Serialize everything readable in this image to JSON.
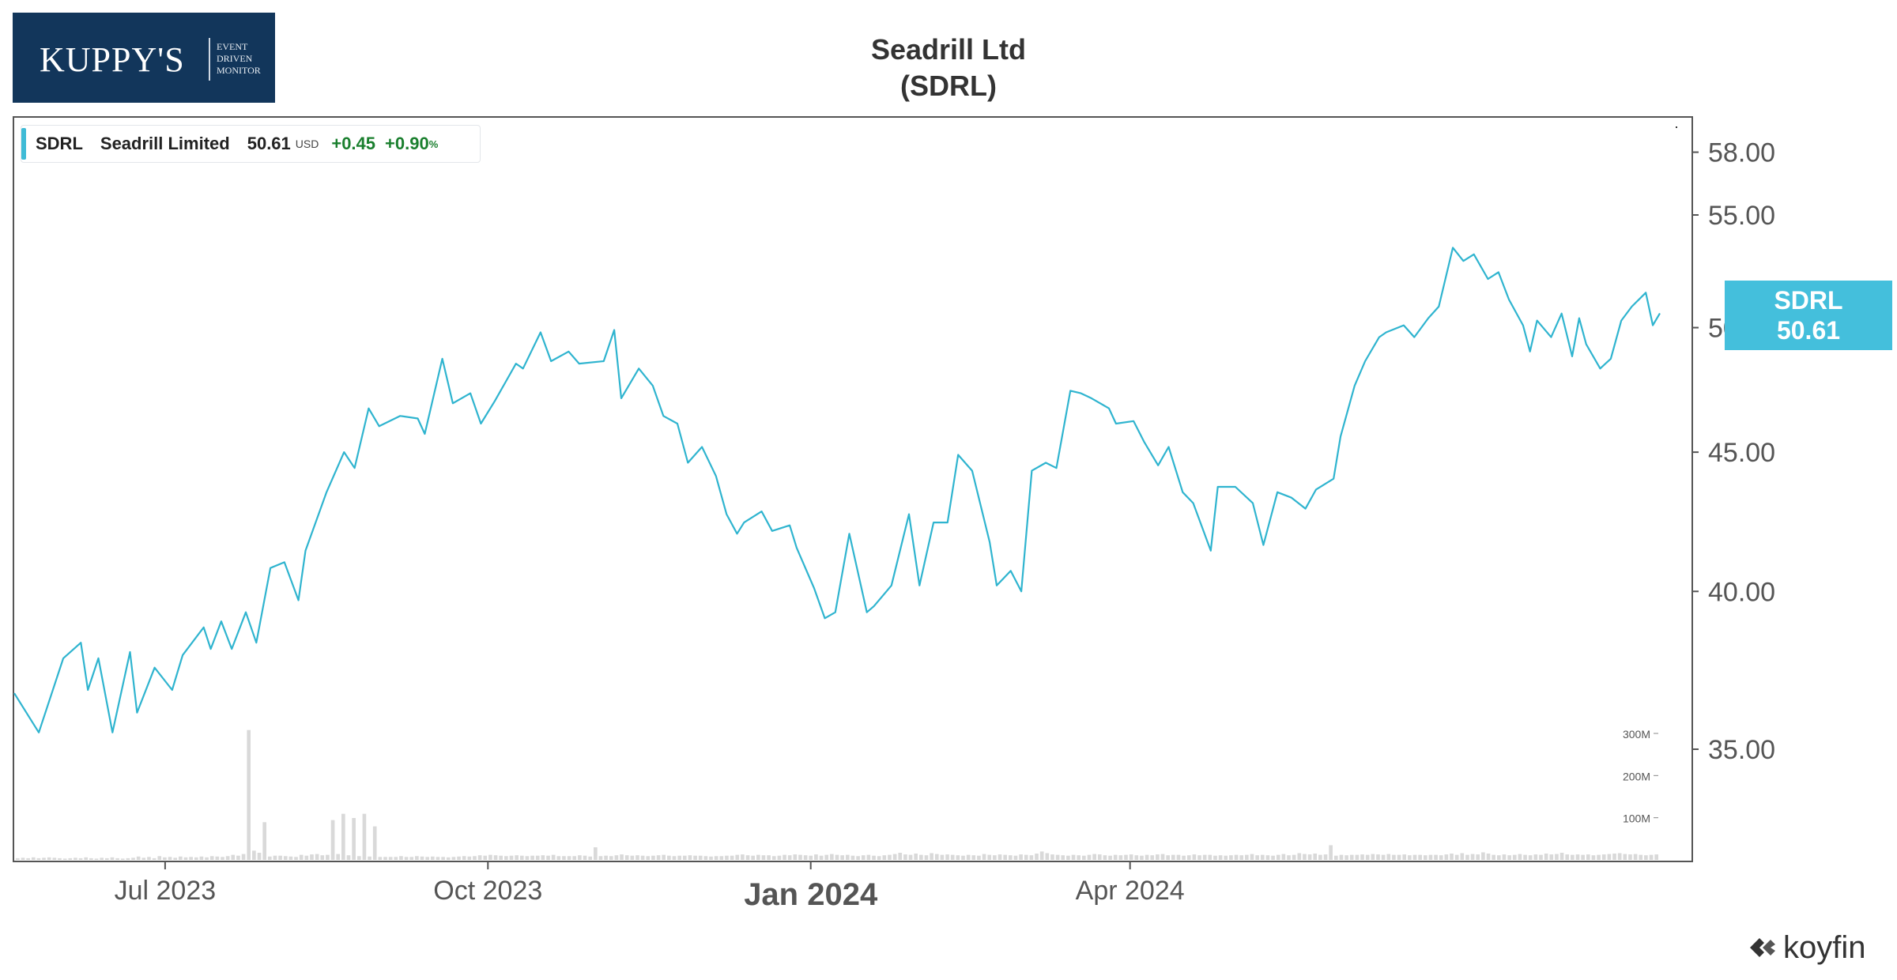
{
  "logo": {
    "brand": "KUPPY'S",
    "tagline": [
      "EVENT",
      "DRIVEN",
      "MONITOR"
    ]
  },
  "title": "Seadrill Ltd",
  "subtitle": "(SDRL)",
  "legend": {
    "ticker": "SDRL",
    "name": "Seadrill Limited",
    "price": "50.61",
    "currency": "USD",
    "change": "+0.45",
    "change_pct": "+0.90",
    "pct_sign": "%"
  },
  "price_tag": {
    "ticker": "SDRL",
    "price": "50.61"
  },
  "watermark": {
    "brand": "koyfin",
    "icon": "koyfin-logo-icon"
  },
  "colors": {
    "line": "#2fb4cf",
    "volume": "#d9d9d9",
    "tag": "#44bfdc",
    "positive": "#1a7f2e"
  },
  "chart_data": {
    "type": "line",
    "scale": "log",
    "grid": false,
    "x_ticks": [
      {
        "label": "Jul 2023",
        "date": "2023-07-01",
        "bold": false
      },
      {
        "label": "Oct 2023",
        "date": "2023-10-01",
        "bold": false
      },
      {
        "label": "Jan 2024",
        "date": "2024-01-01",
        "bold": true
      },
      {
        "label": "Apr 2024",
        "date": "2024-04-01",
        "bold": false
      }
    ],
    "y_ticks": [
      "35.00",
      "40.00",
      "45.00",
      "50.00",
      "55.00",
      "58.00"
    ],
    "volume_ticks": [
      "100M",
      "200M",
      "300M"
    ],
    "series": [
      {
        "values": [
          [
            "2023-05-19",
            36.7
          ],
          [
            "2023-05-26",
            35.5
          ],
          [
            "2023-06-02",
            37.8
          ],
          [
            "2023-06-07",
            38.3
          ],
          [
            "2023-06-09",
            36.8
          ],
          [
            "2023-06-12",
            37.8
          ],
          [
            "2023-06-16",
            35.5
          ],
          [
            "2023-06-21",
            38.0
          ],
          [
            "2023-06-23",
            36.1
          ],
          [
            "2023-06-28",
            37.5
          ],
          [
            "2023-07-03",
            36.8
          ],
          [
            "2023-07-06",
            37.9
          ],
          [
            "2023-07-12",
            38.8
          ],
          [
            "2023-07-14",
            38.1
          ],
          [
            "2023-07-17",
            39.0
          ],
          [
            "2023-07-20",
            38.1
          ],
          [
            "2023-07-24",
            39.3
          ],
          [
            "2023-07-27",
            38.3
          ],
          [
            "2023-07-31",
            40.8
          ],
          [
            "2023-08-04",
            41.0
          ],
          [
            "2023-08-08",
            39.7
          ],
          [
            "2023-08-10",
            41.4
          ],
          [
            "2023-08-16",
            43.5
          ],
          [
            "2023-08-21",
            45.0
          ],
          [
            "2023-08-24",
            44.4
          ],
          [
            "2023-08-28",
            46.7
          ],
          [
            "2023-08-31",
            46.0
          ],
          [
            "2023-09-06",
            46.4
          ],
          [
            "2023-09-11",
            46.3
          ],
          [
            "2023-09-13",
            45.7
          ],
          [
            "2023-09-18",
            48.7
          ],
          [
            "2023-09-21",
            46.9
          ],
          [
            "2023-09-26",
            47.3
          ],
          [
            "2023-09-29",
            46.1
          ],
          [
            "2023-10-03",
            47.0
          ],
          [
            "2023-10-09",
            48.5
          ],
          [
            "2023-10-11",
            48.3
          ],
          [
            "2023-10-16",
            49.8
          ],
          [
            "2023-10-19",
            48.6
          ],
          [
            "2023-10-24",
            49.0
          ],
          [
            "2023-10-27",
            48.5
          ],
          [
            "2023-11-03",
            48.6
          ],
          [
            "2023-11-06",
            49.9
          ],
          [
            "2023-11-08",
            47.1
          ],
          [
            "2023-11-13",
            48.3
          ],
          [
            "2023-11-17",
            47.6
          ],
          [
            "2023-11-20",
            46.4
          ],
          [
            "2023-11-24",
            46.1
          ],
          [
            "2023-11-27",
            44.6
          ],
          [
            "2023-12-01",
            45.2
          ],
          [
            "2023-12-05",
            44.1
          ],
          [
            "2023-12-08",
            42.7
          ],
          [
            "2023-12-11",
            42.0
          ],
          [
            "2023-12-13",
            42.4
          ],
          [
            "2023-12-18",
            42.8
          ],
          [
            "2023-12-21",
            42.1
          ],
          [
            "2023-12-26",
            42.3
          ],
          [
            "2023-12-28",
            41.5
          ],
          [
            "2024-01-02",
            40.1
          ],
          [
            "2024-01-05",
            39.1
          ],
          [
            "2024-01-08",
            39.3
          ],
          [
            "2024-01-12",
            42.0
          ],
          [
            "2024-01-17",
            39.3
          ],
          [
            "2024-01-19",
            39.5
          ],
          [
            "2024-01-24",
            40.2
          ],
          [
            "2024-01-29",
            42.7
          ],
          [
            "2024-02-01",
            40.2
          ],
          [
            "2024-02-05",
            42.4
          ],
          [
            "2024-02-09",
            42.4
          ],
          [
            "2024-02-12",
            44.9
          ],
          [
            "2024-02-16",
            44.3
          ],
          [
            "2024-02-21",
            41.7
          ],
          [
            "2024-02-23",
            40.2
          ],
          [
            "2024-02-27",
            40.7
          ],
          [
            "2024-03-01",
            40.0
          ],
          [
            "2024-03-04",
            44.3
          ],
          [
            "2024-03-08",
            44.6
          ],
          [
            "2024-03-11",
            44.4
          ],
          [
            "2024-03-15",
            47.4
          ],
          [
            "2024-03-18",
            47.3
          ],
          [
            "2024-03-21",
            47.1
          ],
          [
            "2024-03-26",
            46.7
          ],
          [
            "2024-03-28",
            46.1
          ],
          [
            "2024-04-02",
            46.2
          ],
          [
            "2024-04-05",
            45.4
          ],
          [
            "2024-04-09",
            44.5
          ],
          [
            "2024-04-12",
            45.2
          ],
          [
            "2024-04-16",
            43.5
          ],
          [
            "2024-04-19",
            43.1
          ],
          [
            "2024-04-24",
            41.4
          ],
          [
            "2024-04-26",
            43.7
          ],
          [
            "2024-05-01",
            43.7
          ],
          [
            "2024-05-06",
            43.1
          ],
          [
            "2024-05-09",
            41.6
          ],
          [
            "2024-05-13",
            43.5
          ],
          [
            "2024-05-17",
            43.3
          ],
          [
            "2024-05-21",
            42.9
          ],
          [
            "2024-05-24",
            43.6
          ],
          [
            "2024-05-29",
            44.0
          ],
          [
            "2024-05-31",
            45.6
          ],
          [
            "2024-06-04",
            47.6
          ],
          [
            "2024-06-07",
            48.6
          ],
          [
            "2024-06-11",
            49.6
          ],
          [
            "2024-06-13",
            49.8
          ],
          [
            "2024-06-18",
            50.1
          ],
          [
            "2024-06-21",
            49.6
          ],
          [
            "2024-06-25",
            50.4
          ],
          [
            "2024-06-28",
            50.9
          ],
          [
            "2024-07-02",
            53.5
          ],
          [
            "2024-07-05",
            52.9
          ],
          [
            "2024-07-08",
            53.2
          ],
          [
            "2024-07-12",
            52.1
          ],
          [
            "2024-07-15",
            52.4
          ],
          [
            "2024-07-18",
            51.2
          ],
          [
            "2024-07-22",
            50.1
          ],
          [
            "2024-07-24",
            49.0
          ],
          [
            "2024-07-26",
            50.3
          ],
          [
            "2024-07-30",
            49.6
          ],
          [
            "2024-08-02",
            50.6
          ],
          [
            "2024-08-05",
            48.8
          ],
          [
            "2024-08-07",
            50.4
          ],
          [
            "2024-08-09",
            49.3
          ],
          [
            "2024-08-13",
            48.3
          ],
          [
            "2024-08-16",
            48.7
          ],
          [
            "2024-08-19",
            50.3
          ],
          [
            "2024-08-22",
            50.9
          ],
          [
            "2024-08-26",
            51.5
          ],
          [
            "2024-08-28",
            50.1
          ],
          [
            "2024-08-30",
            50.61
          ]
        ]
      }
    ],
    "volume": [
      4,
      5,
      4,
      6,
      4,
      5,
      6,
      5,
      4,
      3,
      4,
      5,
      4,
      6,
      4,
      3,
      5,
      4,
      6,
      4,
      3,
      4,
      5,
      8,
      5,
      7,
      4,
      9,
      6,
      7,
      5,
      8,
      6,
      7,
      6,
      8,
      6,
      9,
      8,
      7,
      9,
      12,
      10,
      14,
      18,
      22,
      17,
      12,
      8,
      10,
      10,
      9,
      8,
      7,
      12,
      10,
      13,
      14,
      11,
      12,
      16,
      14,
      12,
      11,
      10,
      9,
      9,
      8,
      8,
      7,
      7,
      7,
      7,
      9,
      7,
      7,
      9,
      8,
      7,
      8,
      7,
      7,
      6,
      7,
      8,
      9,
      8,
      9,
      11,
      10,
      12,
      11,
      10,
      9,
      10,
      11,
      10,
      9,
      10,
      10,
      11,
      10,
      12,
      9,
      9,
      9,
      9,
      11,
      10,
      8,
      10,
      9,
      10,
      9,
      11,
      13,
      11,
      10,
      11,
      10,
      9,
      10,
      11,
      12,
      10,
      9,
      10,
      10,
      11,
      10,
      10,
      9,
      8,
      9,
      9,
      10,
      10,
      12,
      13,
      11,
      10,
      12,
      11,
      11,
      9,
      10,
      12,
      11,
      13,
      12,
      11,
      10,
      13,
      10,
      12,
      14,
      12,
      11,
      12,
      10,
      9,
      11,
      12,
      10,
      9,
      11,
      12,
      14,
      17,
      13,
      12,
      15,
      12,
      11,
      16,
      14,
      12,
      13,
      12,
      11,
      10,
      12,
      11,
      10,
      14,
      12,
      11,
      13,
      12,
      11,
      10,
      13,
      12,
      11,
      15,
      20,
      16,
      13,
      12,
      11,
      10,
      12,
      11,
      10,
      12,
      14,
      13,
      11,
      10,
      12,
      11,
      12,
      13,
      11,
      10,
      12,
      11,
      13,
      14,
      11,
      12,
      12,
      10,
      11,
      13,
      11,
      12,
      12,
      10,
      11,
      10,
      11,
      12,
      11,
      12,
      14,
      11,
      12,
      11,
      10,
      12,
      14,
      11,
      12,
      16,
      14,
      13,
      15,
      12,
      13,
      11,
      10,
      12,
      11,
      12,
      12,
      13,
      12,
      14,
      13,
      12,
      14,
      12,
      12,
      13,
      11,
      12,
      12,
      11,
      12,
      12,
      11,
      13,
      15,
      12,
      16,
      12,
      14,
      13,
      18,
      15,
      12,
      11,
      13,
      11,
      12,
      14,
      12,
      11,
      13,
      12,
      15,
      13,
      14,
      17,
      13,
      12,
      13,
      12,
      13,
      11,
      12,
      13,
      14,
      15,
      16,
      14,
      13,
      14,
      12,
      11,
      12,
      13
    ],
    "spikes": [
      [
        44,
        310
      ],
      [
        47,
        90
      ],
      [
        60,
        95
      ],
      [
        62,
        110
      ],
      [
        64,
        100
      ],
      [
        66,
        110
      ],
      [
        68,
        80
      ],
      [
        110,
        30
      ],
      [
        250,
        35
      ]
    ]
  }
}
